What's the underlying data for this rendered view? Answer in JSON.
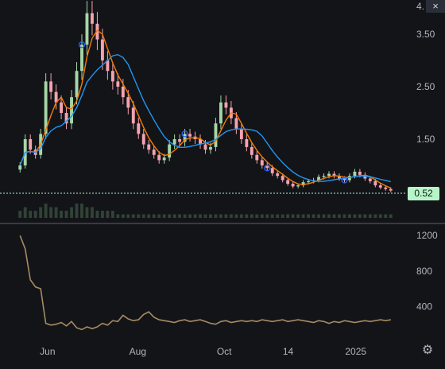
{
  "close_icon": "×",
  "settings_icon": "gear-icon",
  "settings_glyph": "⚙",
  "colors": {
    "background": "#131418",
    "up_candle": "#a5d6a7",
    "down_candle": "#f4a3ae",
    "fast_ma": "#f57c00",
    "slow_ma": "#2196f3",
    "line_panel": "#a58b63",
    "last_price_tag": "#b7f5c9",
    "signal_marker": "#2962ff"
  },
  "chart_data": [
    {
      "type": "candlestick",
      "x_tick_labels": [
        "Jun",
        "Aug",
        "Oct",
        "14",
        "2025"
      ],
      "y_tick_labels": [
        "4.",
        "3.50",
        "2.50",
        "1.50"
      ],
      "ylim": [
        0,
        4
      ],
      "grid": false,
      "last_price": "0.52",
      "last_price_value": 0.52,
      "closes": [
        1.0,
        1.5,
        1.3,
        1.2,
        1.6,
        2.6,
        2.4,
        2.2,
        2.0,
        1.8,
        2.3,
        2.8,
        3.3,
        3.9,
        3.7,
        3.4,
        3.0,
        2.8,
        2.6,
        2.5,
        2.3,
        2.1,
        1.8,
        1.6,
        1.4,
        1.3,
        1.2,
        1.1,
        1.15,
        1.4,
        1.5,
        1.45,
        1.6,
        1.55,
        1.5,
        1.4,
        1.3,
        1.35,
        1.8,
        2.2,
        2.1,
        1.9,
        1.7,
        1.5,
        1.35,
        1.2,
        1.1,
        1.0,
        0.95,
        0.85,
        0.8,
        0.72,
        0.65,
        0.6,
        0.62,
        0.68,
        0.7,
        0.72,
        0.78,
        0.8,
        0.84,
        0.8,
        0.75,
        0.72,
        0.8,
        0.88,
        0.82,
        0.75,
        0.7,
        0.62,
        0.58,
        0.55,
        0.52
      ],
      "volumes": [
        2,
        3,
        2,
        2,
        3,
        4,
        3,
        3,
        2,
        2,
        3,
        4,
        4,
        3,
        3,
        2,
        2,
        2,
        2,
        1,
        1,
        1,
        1,
        1,
        1,
        1,
        1,
        1,
        1,
        1,
        1,
        1,
        1,
        1,
        1,
        1,
        1,
        1,
        1,
        1,
        1,
        1,
        1,
        1,
        1,
        1,
        1,
        1,
        1,
        1,
        1,
        1,
        1,
        1,
        1,
        1,
        1,
        1,
        1,
        1,
        1,
        1,
        1,
        1,
        1,
        1,
        1,
        1,
        1,
        1,
        1,
        1,
        1
      ],
      "signal_markers": [
        12,
        32,
        48,
        63
      ]
    },
    {
      "type": "line",
      "y_tick_labels": [
        "1200",
        "800",
        "400"
      ],
      "ylim": [
        0,
        1300
      ],
      "values": [
        1200,
        1050,
        700,
        620,
        600,
        210,
        190,
        200,
        220,
        180,
        230,
        160,
        140,
        170,
        150,
        170,
        210,
        190,
        240,
        230,
        300,
        260,
        240,
        250,
        310,
        340,
        280,
        250,
        240,
        230,
        220,
        240,
        250,
        230,
        240,
        250,
        230,
        210,
        200,
        230,
        240,
        220,
        230,
        240,
        230,
        240,
        230,
        250,
        240,
        230,
        240,
        250,
        230,
        240,
        250,
        240,
        230,
        220,
        240,
        230,
        210,
        230,
        220,
        240,
        230,
        220,
        230,
        240,
        230,
        240,
        250,
        240,
        250
      ]
    }
  ]
}
